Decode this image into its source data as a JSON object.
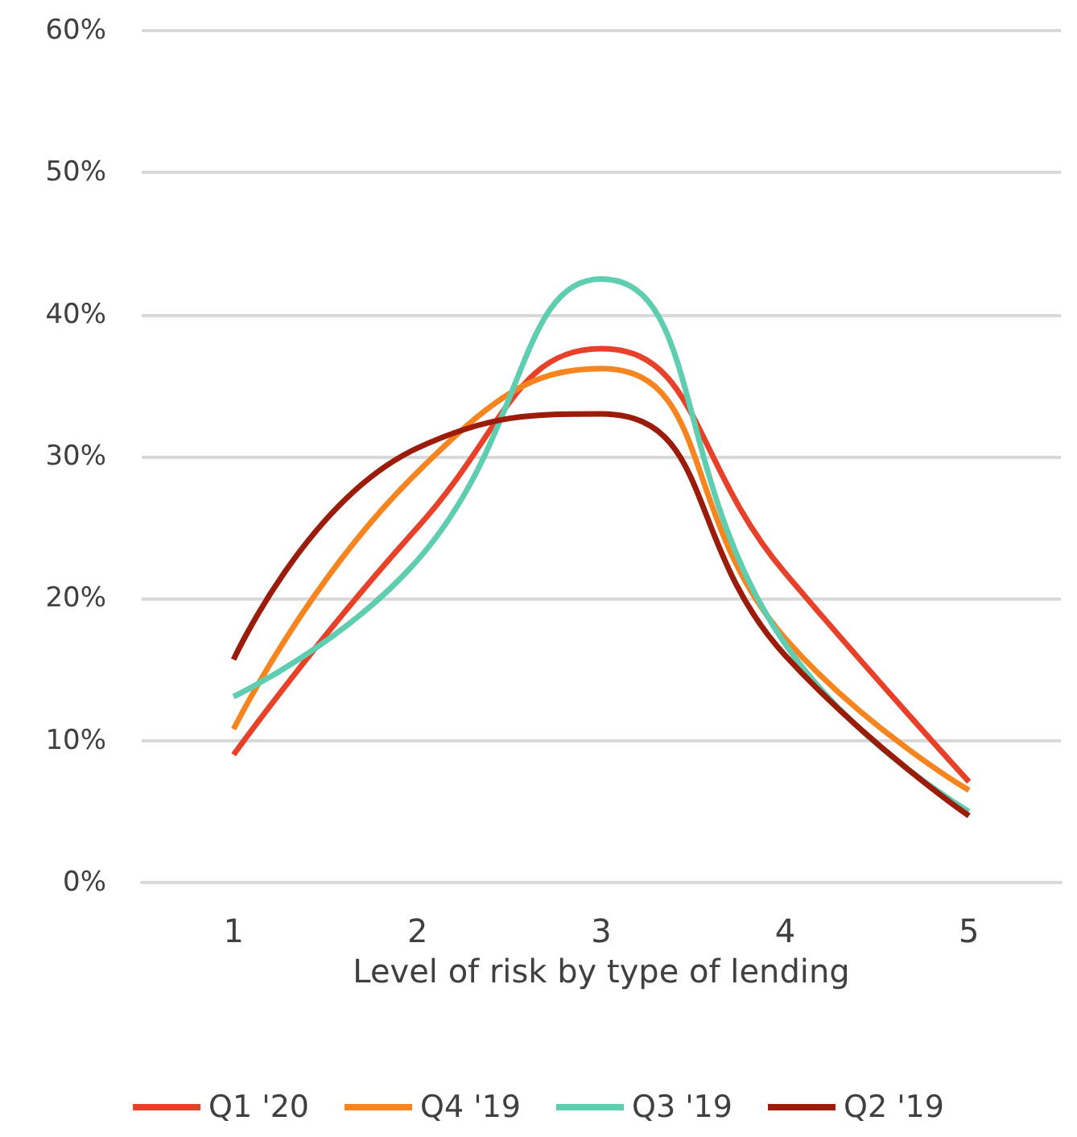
{
  "chart_data": {
    "type": "line",
    "xlabel": "Level of risk by type of lending",
    "categories": [
      "1",
      "2",
      "3",
      "4",
      "5"
    ],
    "series": [
      {
        "name": "Q1 '20",
        "color": "#e8412a",
        "values": [
          9,
          25,
          37.6,
          21.8,
          7.1
        ]
      },
      {
        "name": "Q4 '19",
        "color": "#f7851f",
        "values": [
          10.8,
          28.9,
          36.2,
          17.2,
          6.5
        ]
      },
      {
        "name": "Q3 '19",
        "color": "#5ecdb0",
        "values": [
          13.1,
          22.7,
          42.5,
          16.8,
          5
        ]
      },
      {
        "name": "Q2 '19",
        "color": "#9b1c0a",
        "values": [
          15.7,
          30.6,
          33,
          16,
          4.7
        ]
      }
    ],
    "ylim": [
      0,
      60
    ],
    "yticks": [
      {
        "value": 0,
        "label": "0%"
      },
      {
        "value": 10,
        "label": "10%"
      },
      {
        "value": 20,
        "label": "20%"
      },
      {
        "value": 30,
        "label": "30%"
      },
      {
        "value": 40,
        "label": "40%"
      },
      {
        "value": 50,
        "label": "50%"
      },
      {
        "value": 60,
        "label": "60%"
      }
    ],
    "grid": "y",
    "legend": "bottom",
    "marker": "none",
    "line_style": "solid"
  }
}
